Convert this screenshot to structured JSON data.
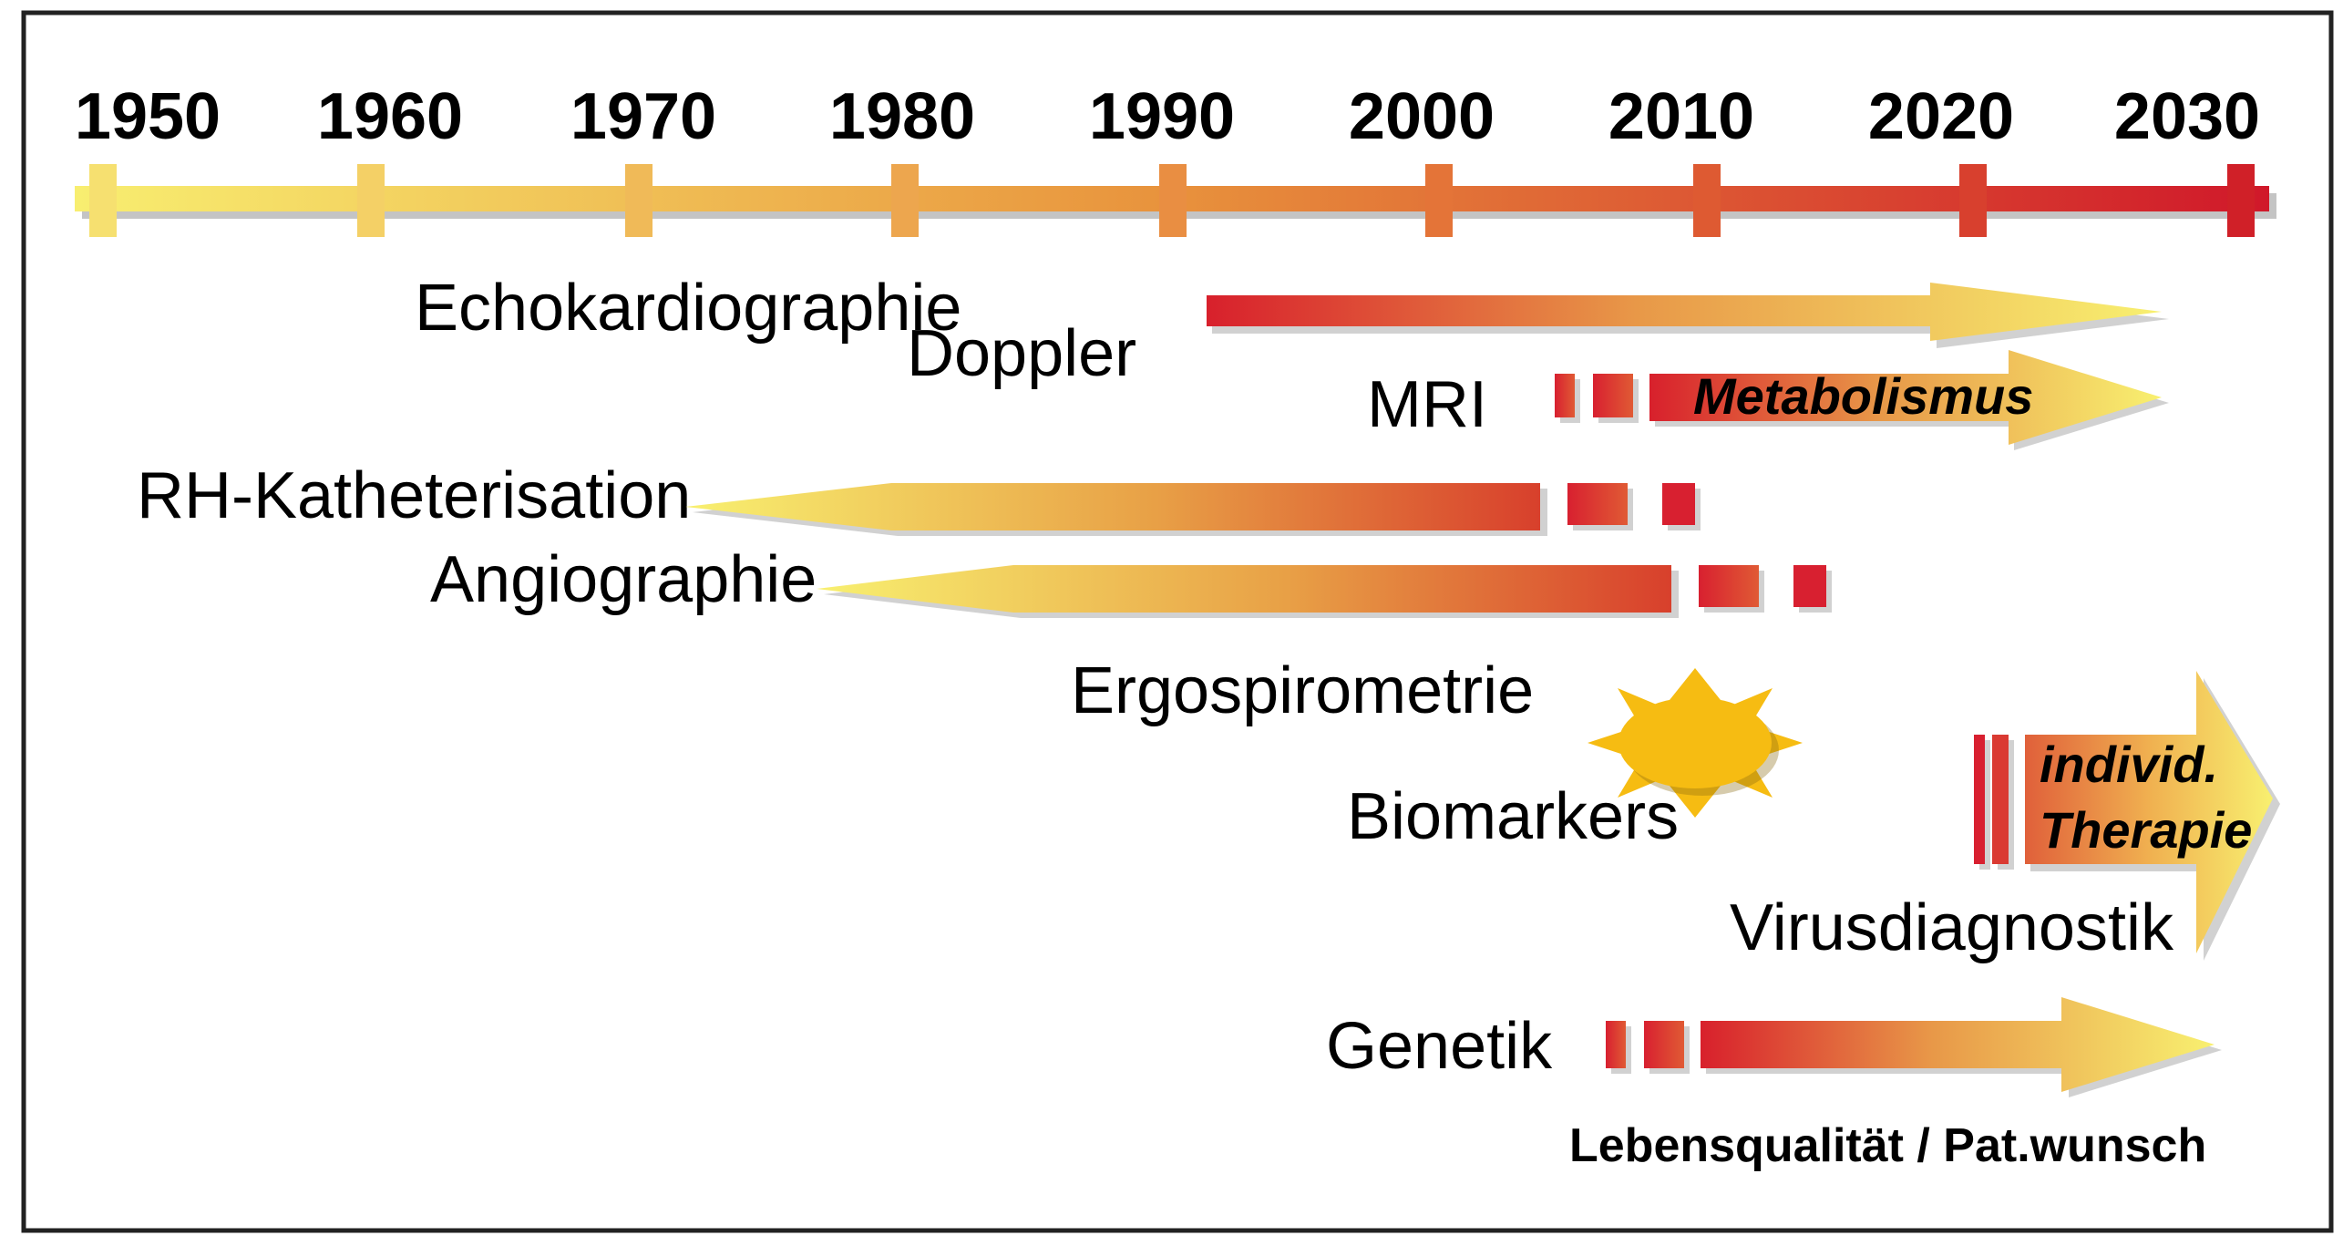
{
  "timeline": {
    "years": [
      "1950",
      "1960",
      "1970",
      "1980",
      "1990",
      "2000",
      "2010",
      "2020",
      "2030"
    ]
  },
  "methods": {
    "echo": "Echokardiographie",
    "doppler": "Doppler",
    "mri": "MRI",
    "metabolism": "Metabolismus",
    "rhcath": "RH-Katheterisation",
    "angio": "Angiographie",
    "ergo": "Ergospirometrie",
    "biomarkers": "Biomarkers",
    "therapy_line1": "individ.",
    "therapy_line2": "Therapie",
    "virus": "Virusdiagnostik",
    "genetics": "Genetik",
    "footer": "Lebensqualität / Pat.wunsch"
  },
  "colors": {
    "yellow": "#F8EE70",
    "orange": "#E8A040",
    "red": "#D8202C",
    "sun": "#F6BC12",
    "frame": "#222222"
  }
}
